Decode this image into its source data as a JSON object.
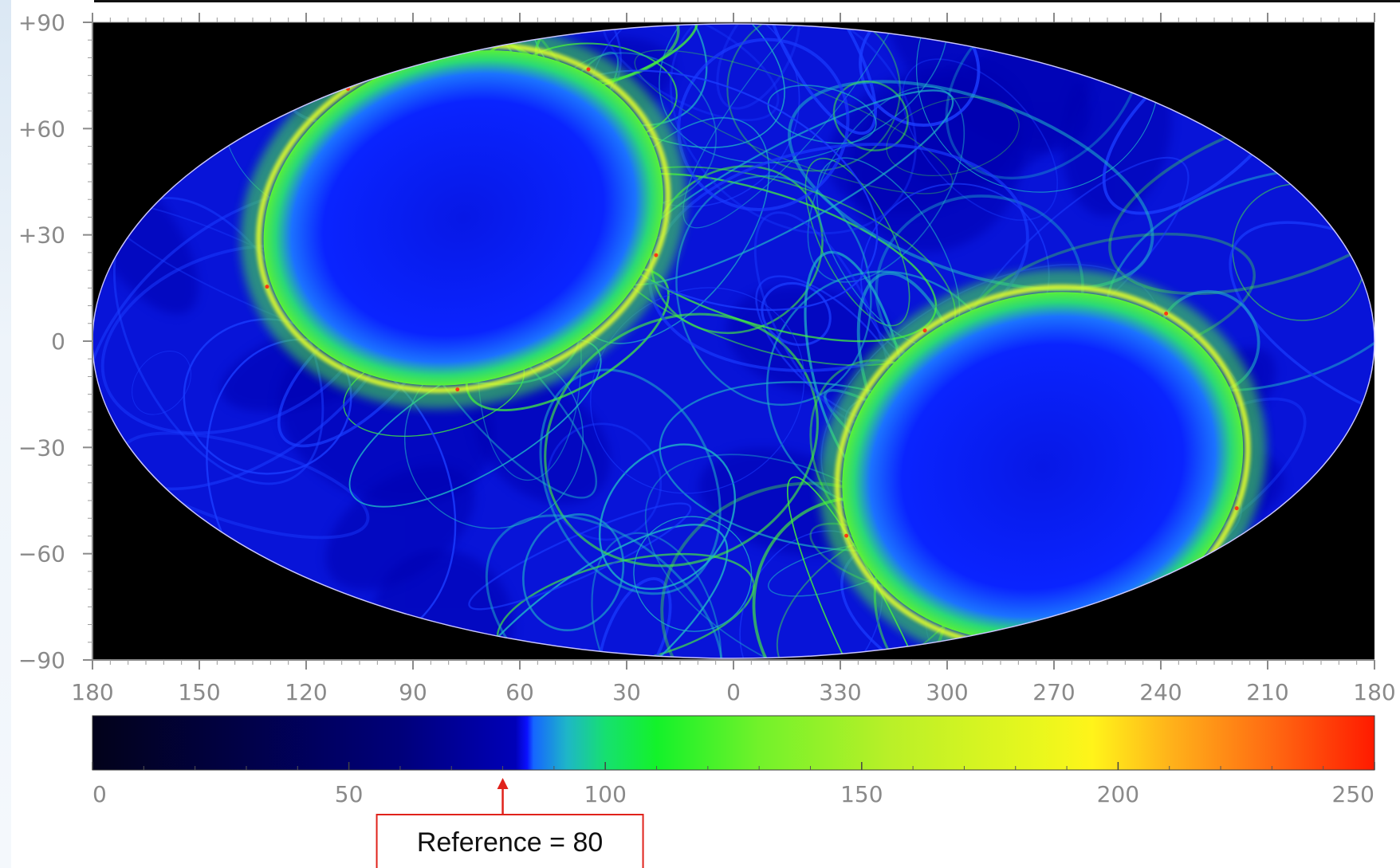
{
  "chart_data": {
    "type": "heatmap",
    "projection": "Hammer-Aitoff (all-sky)",
    "y_ticks": [
      "+90",
      "+60",
      "+30",
      "0",
      "−30",
      "−60",
      "−90"
    ],
    "y_values": [
      90,
      60,
      30,
      0,
      -30,
      -60,
      -90
    ],
    "x_ticks": [
      "180",
      "150",
      "120",
      "90",
      "60",
      "30",
      "0",
      "330",
      "300",
      "270",
      "240",
      "210",
      "180"
    ],
    "x_values": [
      180,
      150,
      120,
      90,
      60,
      30,
      0,
      330,
      300,
      270,
      240,
      210,
      180
    ],
    "ylim": [
      -90,
      90
    ],
    "colorbar": {
      "min": 0,
      "max": 250,
      "ticks": [
        "0",
        "50",
        "100",
        "150",
        "200",
        "250"
      ],
      "tick_values": [
        0,
        50,
        100,
        150,
        200,
        250
      ],
      "colormap": [
        "#000000",
        "#00007f",
        "#0a10ff",
        "#00ff3c",
        "#ffff1a",
        "#ff1a00"
      ]
    },
    "annotation": {
      "text": "Reference = 80",
      "value": 80,
      "color": "#e0221b"
    },
    "regions": [
      {
        "kind": "caustic-ring",
        "center_lon": 78,
        "center_lat": 30
      },
      {
        "kind": "caustic-ring",
        "center_lon": 270,
        "center_lat": -30
      }
    ],
    "colors": {
      "background": "#000000",
      "field": "#0814e8",
      "caustic": "#46f23c",
      "peak": "#e4ff2a",
      "hot": "#ff3a12"
    }
  }
}
